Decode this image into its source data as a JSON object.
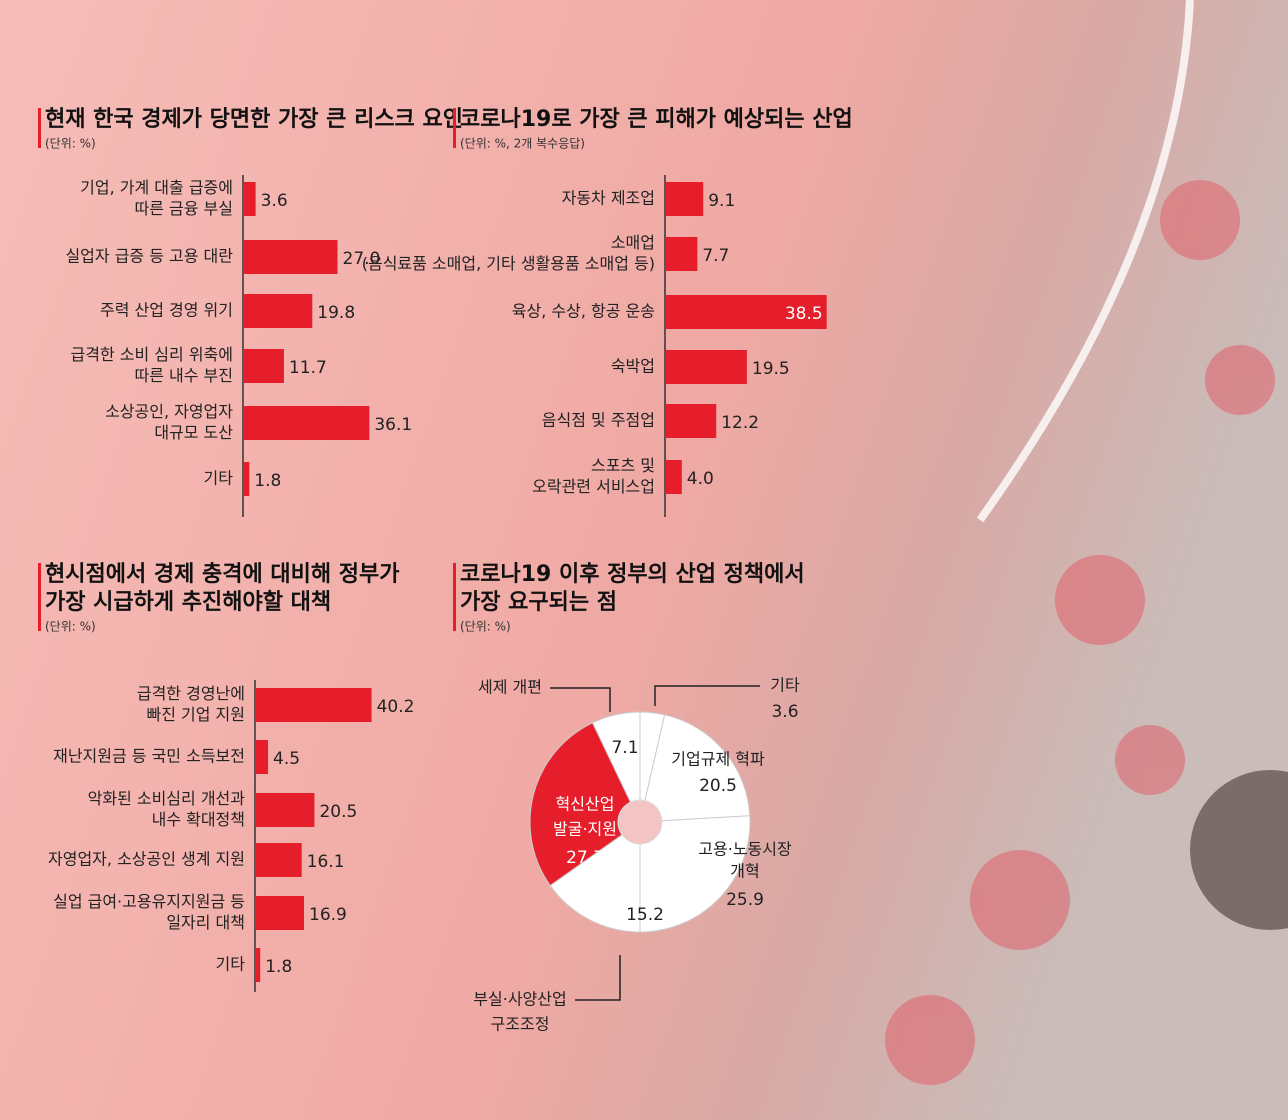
{
  "chart_data": [
    {
      "type": "bar",
      "orientation": "horizontal",
      "title": [
        "현재 한국 경제가 당면한 가장 큰 리스크 요인"
      ],
      "subtitle": "(단위: %)",
      "categories": [
        [
          "기업, 가계 대출 급증에",
          "따른 금융 부실"
        ],
        [
          "실업자 급증 등 고용 대란"
        ],
        [
          "주력 산업 경영 위기"
        ],
        [
          "급격한 소비 심리 위축에",
          "따른 내수 부진"
        ],
        [
          "소상공인, 자영업자",
          "대규모 도산"
        ],
        [
          "기타"
        ]
      ],
      "values": [
        3.6,
        27.0,
        19.8,
        11.7,
        36.1,
        1.8
      ],
      "value_labels": [
        "3.6",
        "27.0",
        "19.8",
        "11.7",
        "36.1",
        "1.8"
      ],
      "color": "#e61e2b"
    },
    {
      "type": "bar",
      "orientation": "horizontal",
      "title": [
        "코로나19로 가장 큰 피해가 예상되는 산업"
      ],
      "subtitle": "(단위: %, 2개 복수응답)",
      "categories": [
        [
          "자동차 제조업"
        ],
        [
          "소매업",
          "(음식료품 소매업, 기타 생활용품 소매업 등)"
        ],
        [
          "육상, 수상, 항공 운송"
        ],
        [
          "숙박업"
        ],
        [
          "음식점 및 주점업"
        ],
        [
          "스포츠 및",
          "오락관련 서비스업"
        ]
      ],
      "values": [
        9.1,
        7.7,
        38.5,
        19.5,
        12.2,
        4.0
      ],
      "value_labels": [
        "9.1",
        "7.7",
        "38.5",
        "19.5",
        "12.2",
        "4.0"
      ],
      "color": "#e61e2b"
    },
    {
      "type": "bar",
      "orientation": "horizontal",
      "title": [
        "현시점에서 경제 충격에 대비해 정부가",
        "가장 시급하게 추진해야할 대책"
      ],
      "subtitle": "(단위: %)",
      "categories": [
        [
          "급격한 경영난에",
          "빠진 기업 지원"
        ],
        [
          "재난지원금 등 국민 소득보전"
        ],
        [
          "악화된 소비심리 개선과",
          "내수 확대정책"
        ],
        [
          "자영업자, 소상공인 생계 지원"
        ],
        [
          "실업 급여·고용유지지원금 등",
          "일자리 대책"
        ],
        [
          "기타"
        ]
      ],
      "values": [
        40.2,
        4.5,
        20.5,
        16.1,
        16.9,
        1.8
      ],
      "value_labels": [
        "40.2",
        "4.5",
        "20.5",
        "16.1",
        "16.9",
        "1.8"
      ],
      "color": "#e61e2b"
    },
    {
      "type": "pie",
      "title": [
        "코로나19 이후 정부의 산업 정책에서",
        "가장 요구되는 점"
      ],
      "subtitle": "(단위: %)",
      "labels": [
        [
          "기타"
        ],
        [
          "기업규제 혁파"
        ],
        [
          "고용·노동시장",
          "개혁"
        ],
        [
          "부실·사양산업",
          "구조조정"
        ],
        [
          "혁신산업",
          "발굴·지원"
        ],
        [
          "세제 개편"
        ]
      ],
      "values": [
        3.6,
        20.5,
        25.9,
        15.2,
        27.7,
        7.1
      ],
      "colors": [
        "#ffffff",
        "#ffffff",
        "#ffffff",
        "#ffffff",
        "#e61e2b",
        "#ffffff"
      ]
    }
  ]
}
